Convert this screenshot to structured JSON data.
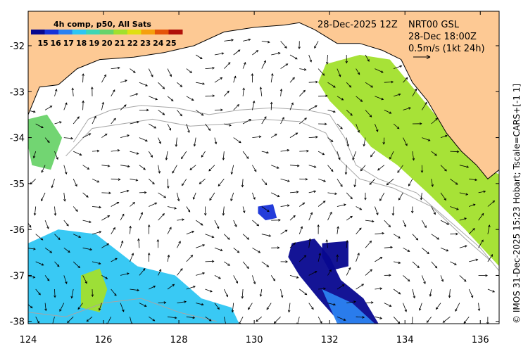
{
  "colors": {
    "land": "#fdc994",
    "water": "#ffffff",
    "frame": "#000000",
    "contour": "#a6a6a6",
    "vector": "#000000"
  },
  "header": {
    "datetime": "28-Dec-2025 12Z",
    "product": "NRT00 GSL",
    "valid_time": "28-Dec 18:00Z",
    "scale_label": "0.5m/s (1kt 24h)"
  },
  "colorbar": {
    "title": "4h comp, p50, All Sats",
    "ticks": [
      "15",
      "16",
      "17",
      "18",
      "19",
      "20",
      "21",
      "22",
      "23",
      "24",
      "25"
    ],
    "colors": [
      "#07078f",
      "#1732d8",
      "#2b82f0",
      "#2ec6f3",
      "#3fd6b4",
      "#6ad36a",
      "#a2e02c",
      "#e0df11",
      "#f5a00c",
      "#e55408",
      "#b01008"
    ]
  },
  "credit": "© IMOS 31-Dec-2025 15:23 Hobart; Tscale=CARS+[-1 1]",
  "chart_data": {
    "type": "map",
    "x_ticks": [
      124,
      126,
      128,
      130,
      132,
      134,
      136
    ],
    "y_ticks": [
      -32,
      -33,
      -34,
      -35,
      -36,
      -37,
      -38
    ],
    "xlim": [
      124,
      136.5
    ],
    "ylim": [
      -38.05,
      -31.25
    ],
    "x_tick_labels": [
      "124",
      "126",
      "128",
      "130",
      "132",
      "134",
      "136"
    ],
    "y_tick_labels": [
      "-32",
      "-33",
      "-34",
      "-35",
      "-36",
      "-37",
      "-38"
    ],
    "coastline": [
      [
        124,
        -33.5
      ],
      [
        124.3,
        -32.9
      ],
      [
        124.8,
        -32.85
      ],
      [
        125.3,
        -32.5
      ],
      [
        125.9,
        -32.3
      ],
      [
        126.8,
        -32.25
      ],
      [
        127.6,
        -32.15
      ],
      [
        128.4,
        -32.0
      ],
      [
        129.2,
        -31.7
      ],
      [
        130.0,
        -31.6
      ],
      [
        130.8,
        -31.55
      ],
      [
        131.2,
        -31.5
      ],
      [
        131.6,
        -31.65
      ],
      [
        132.2,
        -31.95
      ],
      [
        132.8,
        -31.95
      ],
      [
        133.4,
        -32.1
      ],
      [
        133.9,
        -32.3
      ],
      [
        134.2,
        -32.8
      ],
      [
        134.6,
        -33.2
      ],
      [
        135.1,
        -33.9
      ],
      [
        135.5,
        -34.3
      ],
      [
        135.9,
        -34.6
      ],
      [
        136.2,
        -34.9
      ],
      [
        136.5,
        -34.7
      ]
    ],
    "sst_patches": [
      {
        "level": 19.5,
        "points": [
          [
            124,
            -33.6
          ],
          [
            124.5,
            -33.5
          ],
          [
            124.9,
            -34.0
          ],
          [
            124.6,
            -34.7
          ],
          [
            124.1,
            -34.6
          ],
          [
            124,
            -34.2
          ]
        ]
      },
      {
        "level": 20.5,
        "points": [
          [
            131.9,
            -32.4
          ],
          [
            132.8,
            -32.2
          ],
          [
            133.6,
            -32.3
          ],
          [
            134.3,
            -33.0
          ],
          [
            135.2,
            -33.9
          ],
          [
            136.0,
            -34.6
          ],
          [
            136.5,
            -34.8
          ],
          [
            136.5,
            -36.8
          ],
          [
            135.6,
            -36.0
          ],
          [
            134.6,
            -35.2
          ],
          [
            133.8,
            -34.6
          ],
          [
            133.1,
            -34.2
          ],
          [
            132.6,
            -33.7
          ],
          [
            132.0,
            -33.2
          ],
          [
            131.7,
            -32.8
          ]
        ]
      },
      {
        "level": 17.8,
        "points": [
          [
            124,
            -36.3
          ],
          [
            124.8,
            -36.0
          ],
          [
            125.8,
            -36.1
          ],
          [
            126.9,
            -36.8
          ],
          [
            127.9,
            -37.0
          ],
          [
            128.6,
            -37.5
          ],
          [
            129.4,
            -37.7
          ],
          [
            129.6,
            -38.05
          ],
          [
            124,
            -38.05
          ]
        ]
      },
      {
        "level": 20.8,
        "points": [
          [
            125.4,
            -37.0
          ],
          [
            125.9,
            -36.85
          ],
          [
            126.1,
            -37.3
          ],
          [
            125.9,
            -37.8
          ],
          [
            125.4,
            -37.7
          ]
        ]
      },
      {
        "level": 15.3,
        "points": [
          [
            131.0,
            -36.3
          ],
          [
            131.6,
            -36.2
          ],
          [
            132.0,
            -36.6
          ],
          [
            132.3,
            -37.1
          ],
          [
            132.9,
            -37.5
          ],
          [
            133.3,
            -38.05
          ],
          [
            132.3,
            -38.05
          ],
          [
            131.7,
            -37.5
          ],
          [
            131.2,
            -37.0
          ],
          [
            130.9,
            -36.6
          ]
        ]
      },
      {
        "level": 15.3,
        "points": [
          [
            131.8,
            -36.3
          ],
          [
            132.5,
            -36.25
          ],
          [
            132.5,
            -36.8
          ],
          [
            132.0,
            -36.9
          ],
          [
            131.8,
            -36.6
          ]
        ]
      },
      {
        "level": 16.3,
        "points": [
          [
            130.1,
            -35.5
          ],
          [
            130.5,
            -35.45
          ],
          [
            130.6,
            -35.75
          ],
          [
            130.3,
            -35.8
          ],
          [
            130.1,
            -35.65
          ]
        ]
      },
      {
        "level": 16.8,
        "points": [
          [
            131.8,
            -37.3
          ],
          [
            132.6,
            -37.6
          ],
          [
            133.2,
            -38.05
          ],
          [
            132.2,
            -38.05
          ]
        ]
      }
    ],
    "contours": [
      [
        [
          125.2,
          -34.1
        ],
        [
          125.6,
          -33.6
        ],
        [
          126.2,
          -33.4
        ],
        [
          127.0,
          -33.3
        ],
        [
          127.9,
          -33.35
        ],
        [
          128.8,
          -33.5
        ],
        [
          129.6,
          -33.4
        ],
        [
          130.5,
          -33.35
        ],
        [
          131.4,
          -33.4
        ],
        [
          132.0,
          -33.5
        ],
        [
          132.4,
          -34.0
        ],
        [
          132.7,
          -34.6
        ],
        [
          133.3,
          -34.9
        ],
        [
          134.3,
          -35.2
        ],
        [
          135.3,
          -35.9
        ],
        [
          136.0,
          -36.4
        ],
        [
          136.5,
          -36.9
        ]
      ],
      [
        [
          125.0,
          -34.4
        ],
        [
          125.7,
          -33.8
        ],
        [
          126.5,
          -33.7
        ],
        [
          127.3,
          -33.6
        ],
        [
          128.3,
          -33.75
        ],
        [
          129.3,
          -33.7
        ],
        [
          130.2,
          -33.6
        ],
        [
          131.2,
          -33.65
        ],
        [
          131.9,
          -33.9
        ],
        [
          132.3,
          -34.5
        ],
        [
          132.8,
          -34.9
        ],
        [
          133.7,
          -35.1
        ],
        [
          134.7,
          -35.5
        ],
        [
          135.6,
          -36.2
        ],
        [
          136.3,
          -36.7
        ]
      ],
      [
        [
          124,
          -37.8
        ],
        [
          125.0,
          -37.9
        ],
        [
          126.0,
          -37.6
        ],
        [
          127.0,
          -37.5
        ],
        [
          128.0,
          -37.8
        ],
        [
          129.0,
          -38.0
        ]
      ]
    ],
    "vectors": {
      "lon_start": 124.2,
      "lon_end": 136.4,
      "lon_step": 0.5,
      "lat_start": -31.9,
      "lat_end": -38.0,
      "lat_step": 0.3
    },
    "grid": false
  }
}
